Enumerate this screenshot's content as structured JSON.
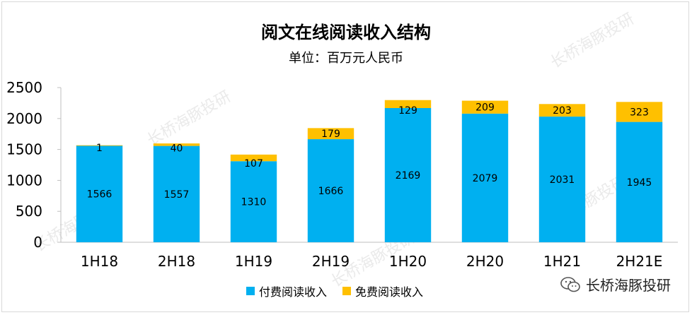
{
  "chart_data": {
    "type": "bar",
    "stacked": true,
    "title": "阅文在线阅读收入结构",
    "subtitle": "单位：百万元人民币",
    "categories": [
      "1H18",
      "2H18",
      "1H19",
      "2H19",
      "1H20",
      "2H20",
      "1H21",
      "2H21E"
    ],
    "series": [
      {
        "name": "付费阅读收入",
        "color": "#00B0F0",
        "values": [
          1566,
          1557,
          1310,
          1666,
          2169,
          2079,
          2031,
          1945
        ]
      },
      {
        "name": "免费阅读收入",
        "color": "#FFC000",
        "values": [
          1,
          40,
          107,
          179,
          129,
          209,
          203,
          323
        ]
      }
    ],
    "yticks": [
      0,
      500,
      1000,
      1500,
      2000,
      2500
    ],
    "ylim": [
      0,
      2500
    ],
    "grid": false,
    "legend_position": "bottom"
  },
  "branding": {
    "logo_text": "长桥海豚投研",
    "watermark": "长桥海豚投研"
  }
}
